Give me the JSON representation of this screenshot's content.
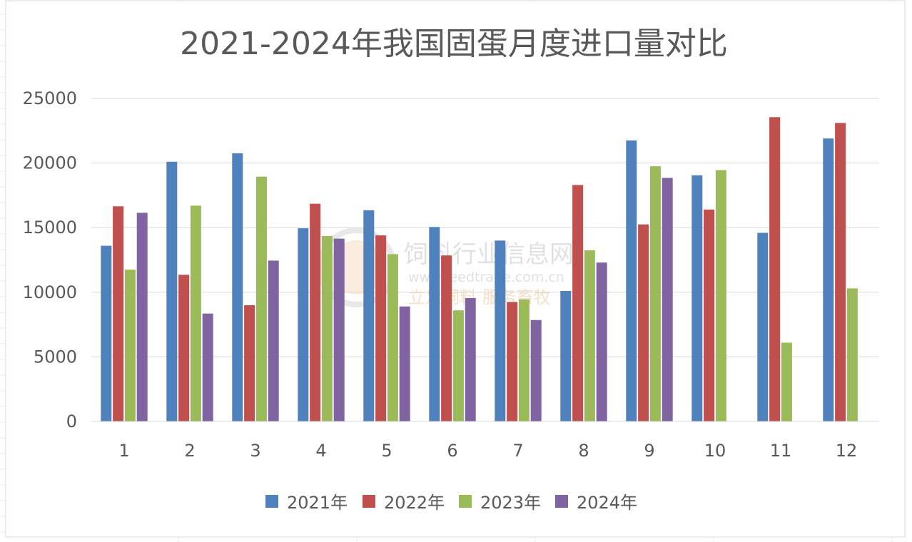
{
  "chart_data": {
    "type": "bar",
    "title": "2021-2024年我国固蛋月度进口量对比",
    "xlabel": "",
    "ylabel": "",
    "ylim": [
      0,
      25000
    ],
    "yticks": [
      "0",
      "5000",
      "10000",
      "15000",
      "20000",
      "25000"
    ],
    "categories": [
      "1",
      "2",
      "3",
      "4",
      "5",
      "6",
      "7",
      "8",
      "9",
      "10",
      "11",
      "12"
    ],
    "grid": true,
    "legend_position": "bottom",
    "series": [
      {
        "name": "2021年",
        "color": "#4F81BD",
        "values": [
          13600,
          20100,
          20750,
          14950,
          16350,
          15050,
          14000,
          10100,
          21750,
          19050,
          14600,
          21900
        ]
      },
      {
        "name": "2022年",
        "color": "#C0504D",
        "values": [
          16650,
          11350,
          9000,
          16850,
          14400,
          12850,
          9250,
          18300,
          15250,
          16400,
          23550,
          23100
        ]
      },
      {
        "name": "2023年",
        "color": "#9BBB59",
        "values": [
          11750,
          16700,
          18950,
          14350,
          12950,
          8600,
          9450,
          13250,
          19750,
          19450,
          6100,
          10300
        ]
      },
      {
        "name": "2024年",
        "color": "#8064A2",
        "values": [
          16150,
          8350,
          12450,
          14150,
          8900,
          9550,
          7850,
          12300,
          18850,
          null,
          null,
          null
        ]
      }
    ]
  },
  "watermark": {
    "name": "饲料行业信息网",
    "url": "www.feedtrade.com.cn",
    "slogan": "立足饲料  服务畜牧"
  }
}
